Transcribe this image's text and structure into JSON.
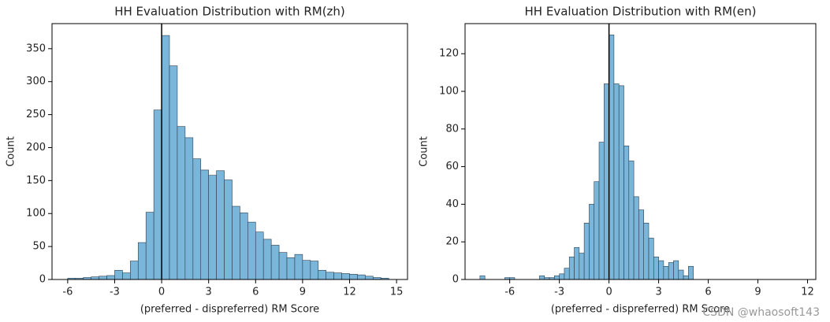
{
  "chart_data": [
    {
      "type": "histogram",
      "title": "HH Evaluation Distribution with RM(zh)",
      "x_label": "(preferred - dispreferred) RM Score",
      "y_label": "Count",
      "bins": [
        -6,
        -5.5,
        -5,
        -4.5,
        -4,
        -3.5,
        -3,
        -2.5,
        -2,
        -1.5,
        -1,
        -0.5,
        0,
        0.5,
        1,
        1.5,
        2,
        2.5,
        3,
        3.5,
        4,
        4.5,
        5,
        5.5,
        6,
        6.5,
        7,
        7.5,
        8,
        8.5,
        9,
        9.5,
        10,
        10.5,
        11,
        11.5,
        12,
        12.5,
        13,
        13.5,
        14,
        14.5
      ],
      "values": [
        2,
        2,
        3,
        4,
        5,
        6,
        14,
        10,
        28,
        56,
        102,
        257,
        370,
        324,
        232,
        215,
        183,
        166,
        158,
        165,
        151,
        111,
        101,
        87,
        72,
        61,
        52,
        41,
        33,
        38,
        29,
        28,
        14,
        11,
        10,
        9,
        8,
        7,
        5,
        3,
        2
      ],
      "color": "#7ab6d9",
      "vline": 0,
      "xlim": [
        -7.0,
        15.7
      ],
      "xticks": [
        -6,
        -3,
        0,
        3,
        6,
        9,
        12,
        15
      ],
      "ylim": [
        0,
        388
      ],
      "yticks": [
        0,
        50,
        100,
        150,
        200,
        250,
        300,
        350
      ]
    },
    {
      "type": "histogram",
      "title": "HH Evaluation Distribution with RM(en)",
      "x_label": "(preferred - dispreferred) RM Score",
      "y_label": "Count",
      "bins": [
        -7.8,
        -7.5,
        -7.2,
        -6.9,
        -6.6,
        -6.3,
        -6.0,
        -5.7,
        -5.4,
        -5.1,
        -4.8,
        -4.5,
        -4.2,
        -3.9,
        -3.6,
        -3.3,
        -3.0,
        -2.7,
        -2.4,
        -2.1,
        -1.8,
        -1.5,
        -1.2,
        -0.9,
        -0.6,
        -0.3,
        0,
        0.3,
        0.6,
        0.9,
        1.2,
        1.5,
        1.8,
        2.1,
        2.4,
        2.7,
        3.0,
        3.3,
        3.6,
        3.9,
        4.2,
        4.5,
        4.8,
        5.1
      ],
      "values": [
        2,
        0,
        0,
        0,
        0,
        1,
        1,
        0,
        0,
        0,
        0,
        0,
        2,
        1,
        1,
        2,
        3,
        6,
        12,
        17,
        14,
        30,
        40,
        52,
        73,
        104,
        130,
        104,
        103,
        71,
        63,
        44,
        37,
        30,
        22,
        12,
        10,
        7,
        9,
        10,
        5,
        2,
        7
      ],
      "color": "#7ab6d9",
      "vline": 0,
      "xlim": [
        -8.7,
        12.5
      ],
      "xticks": [
        -6,
        -3,
        0,
        3,
        6,
        9,
        12
      ],
      "ylim": [
        0,
        136
      ],
      "yticks": [
        0,
        20,
        40,
        60,
        80,
        100,
        120
      ]
    }
  ],
  "watermark": "CSDN @whaosoft143"
}
